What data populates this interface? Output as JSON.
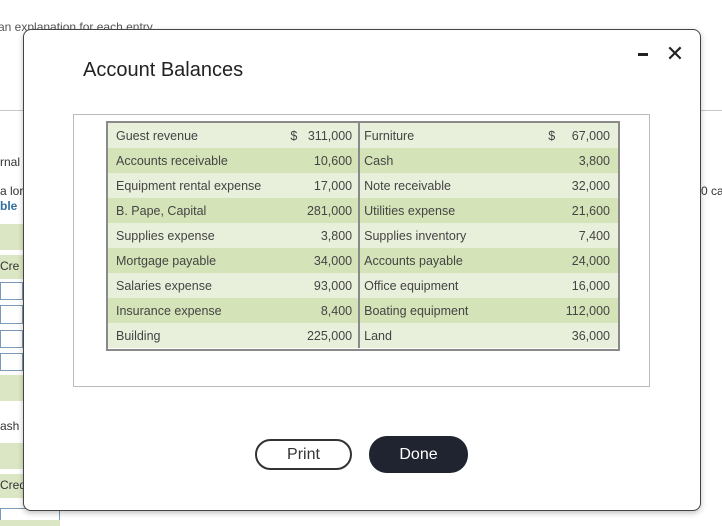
{
  "background": {
    "top_text": "an explanation for each entry",
    "left_texts": [
      "rnal",
      "a lor",
      "ble",
      "Cre",
      "ash",
      "Cred"
    ],
    "right_text": "0 ca"
  },
  "modal": {
    "title": "Account Balances",
    "minimize_label": "",
    "close_label": "✕"
  },
  "balances": {
    "rows": [
      {
        "left_name": "Guest revenue",
        "left_currency": "$",
        "left_amount": "311,000",
        "right_name": "Furniture",
        "right_currency": "$",
        "right_amount": "67,000"
      },
      {
        "left_name": "Accounts receivable",
        "left_currency": "",
        "left_amount": "10,600",
        "right_name": "Cash",
        "right_currency": "",
        "right_amount": "3,800"
      },
      {
        "left_name": "Equipment rental expense",
        "left_currency": "",
        "left_amount": "17,000",
        "right_name": "Note receivable",
        "right_currency": "",
        "right_amount": "32,000"
      },
      {
        "left_name": "B. Pape, Capital",
        "left_currency": "",
        "left_amount": "281,000",
        "right_name": "Utilities expense",
        "right_currency": "",
        "right_amount": "21,600"
      },
      {
        "left_name": "Supplies expense",
        "left_currency": "",
        "left_amount": "3,800",
        "right_name": "Supplies inventory",
        "right_currency": "",
        "right_amount": "7,400"
      },
      {
        "left_name": "Mortgage payable",
        "left_currency": "",
        "left_amount": "34,000",
        "right_name": "Accounts payable",
        "right_currency": "",
        "right_amount": "24,000"
      },
      {
        "left_name": "Salaries expense",
        "left_currency": "",
        "left_amount": "93,000",
        "right_name": "Office equipment",
        "right_currency": "",
        "right_amount": "16,000"
      },
      {
        "left_name": "Insurance expense",
        "left_currency": "",
        "left_amount": "8,400",
        "right_name": "Boating equipment",
        "right_currency": "",
        "right_amount": "112,000"
      },
      {
        "left_name": "Building",
        "left_currency": "",
        "left_amount": "225,000",
        "right_name": "Land",
        "right_currency": "",
        "right_amount": "36,000"
      }
    ]
  },
  "buttons": {
    "print_label": "Print",
    "done_label": "Done"
  },
  "colors": {
    "row_light": "#e8f0dc",
    "row_dark": "#d5e3b8",
    "done_bg": "#1f2430"
  }
}
